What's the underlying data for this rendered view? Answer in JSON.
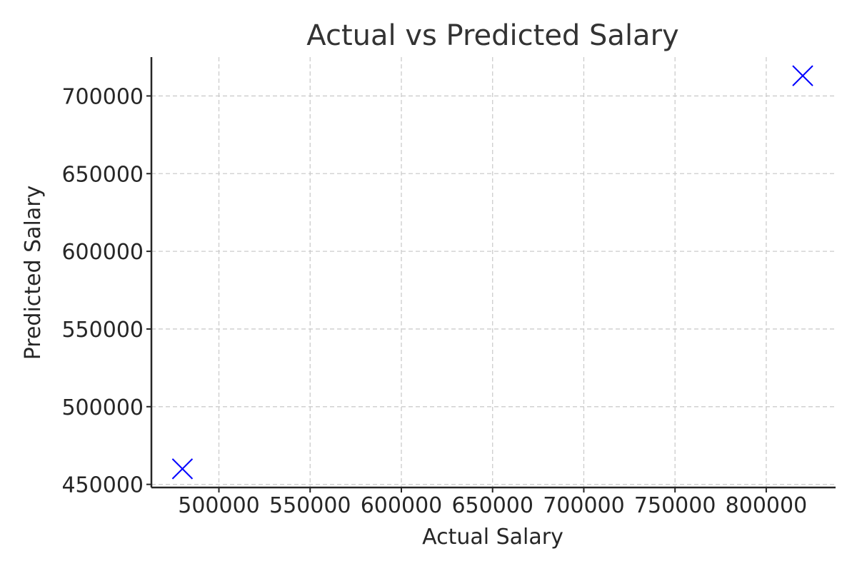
{
  "chart_data": {
    "type": "scatter",
    "title": "Actual vs Predicted Salary",
    "xlabel": "Actual Salary",
    "ylabel": "Predicted Salary",
    "xlim": [
      463000,
      838000
    ],
    "ylim": [
      448000,
      725000
    ],
    "x_ticks": [
      500000,
      550000,
      600000,
      650000,
      700000,
      750000,
      800000
    ],
    "y_ticks": [
      450000,
      500000,
      550000,
      600000,
      650000,
      700000
    ],
    "grid": true,
    "series": [
      {
        "marker": "x",
        "color": "#0000ff",
        "points": [
          {
            "x": 480000,
            "y": 460000
          },
          {
            "x": 820000,
            "y": 713000
          }
        ]
      }
    ]
  }
}
